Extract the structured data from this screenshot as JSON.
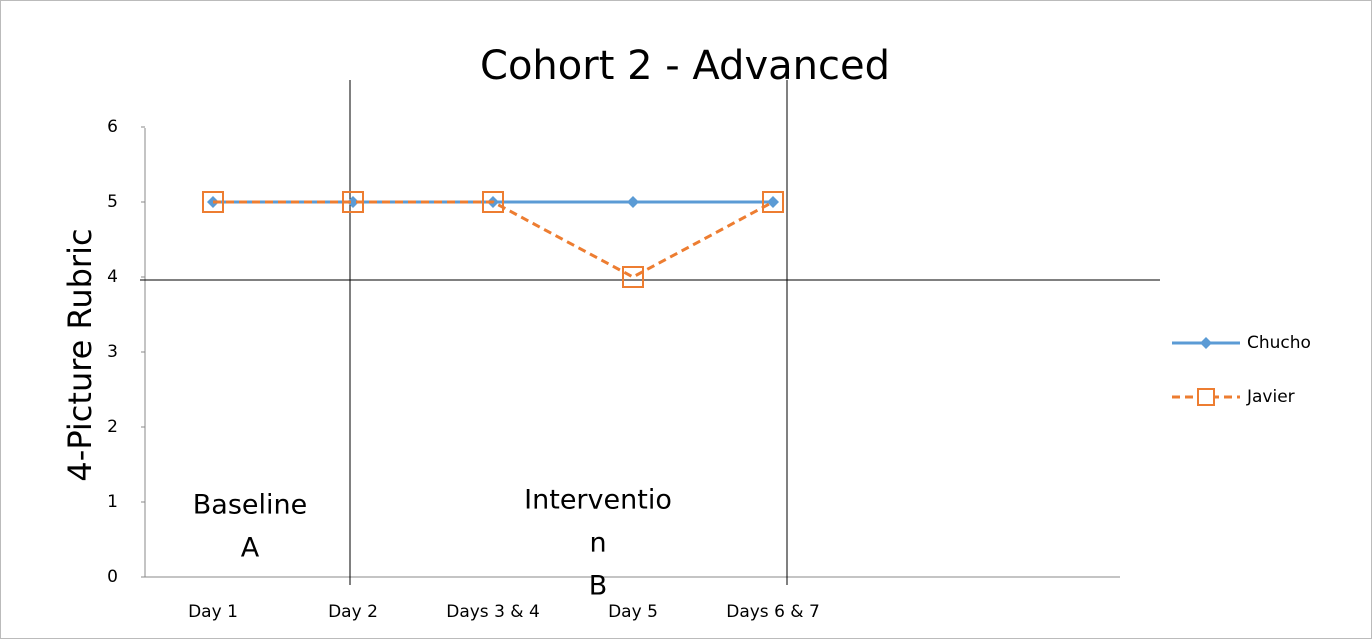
{
  "chart_data": {
    "type": "line",
    "title": "Cohort 2 - Advanced",
    "y_label": "4-Picture Rubric",
    "categories": [
      "Day 1",
      "Day 2",
      "Days 3 & 4",
      "Day 5",
      "Days 6 & 7"
    ],
    "series": [
      {
        "name": "Chucho",
        "color": "#5b9bd5",
        "dash": false,
        "marker": "diamond",
        "values": [
          5,
          5,
          5,
          5,
          5
        ]
      },
      {
        "name": "Javier",
        "color": "#ed7d31",
        "dash": true,
        "marker": "square",
        "values": [
          5,
          5,
          5,
          4,
          5
        ]
      }
    ],
    "ylim": [
      0,
      6
    ],
    "yticks": [
      0,
      1,
      2,
      3,
      4,
      5,
      6
    ],
    "grid": false,
    "legend": "right",
    "annotations": [
      [
        "Baseline",
        "A"
      ],
      [
        "Interventio",
        "n",
        "B"
      ]
    ]
  }
}
